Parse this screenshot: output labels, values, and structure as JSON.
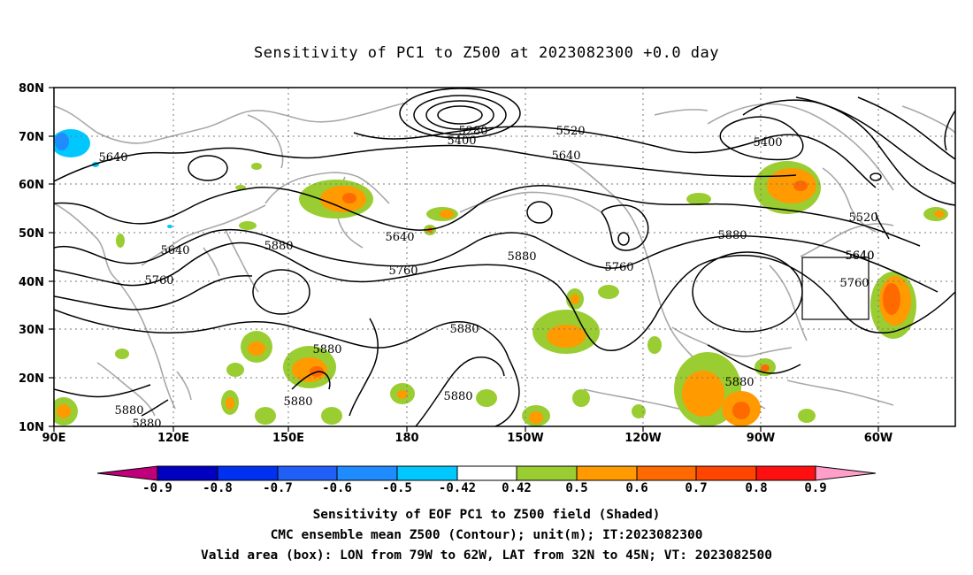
{
  "title": "Sensitivity of PC1 to Z500 at 2023082300 +0.0 day",
  "lat_labels": [
    "80N",
    "70N",
    "60N",
    "50N",
    "40N",
    "30N",
    "20N",
    "10N"
  ],
  "lon_labels": [
    "90E",
    "120E",
    "150E",
    "180",
    "150W",
    "120W",
    "90W",
    "60W"
  ],
  "contour_labels": [
    "5280",
    "5400",
    "5520",
    "5640",
    "5640",
    "5400",
    "5640",
    "5640",
    "5880",
    "5640",
    "5760",
    "5880",
    "5760",
    "5760",
    "5880",
    "5520",
    "5640",
    "5760",
    "5880",
    "5880",
    "5880",
    "5880",
    "5880",
    "5880",
    "5880"
  ],
  "colorbar": {
    "labels": [
      "-0.9",
      "-0.8",
      "-0.7",
      "-0.6",
      "-0.5",
      "-0.42",
      "0.42",
      "0.5",
      "0.6",
      "0.7",
      "0.8",
      "0.9"
    ],
    "colors": [
      "#0000c0",
      "#0030f0",
      "#2060f8",
      "#1e8cff",
      "#00c8ff",
      "#ffffff",
      "#9acd32",
      "#ff9a00",
      "#ff6a00",
      "#ff4500",
      "#ff1010"
    ],
    "low_end_color": "#c0007a",
    "high_end_color": "#ff9ec8"
  },
  "captions": [
    "Sensitivity of EOF PC1 to Z500 field (Shaded)",
    "CMC ensemble mean Z500 (Contour); unit(m); IT:2023082300",
    "Valid area (box): LON from 79W to 62W, LAT from 32N to 45N; VT: 2023082500"
  ]
}
